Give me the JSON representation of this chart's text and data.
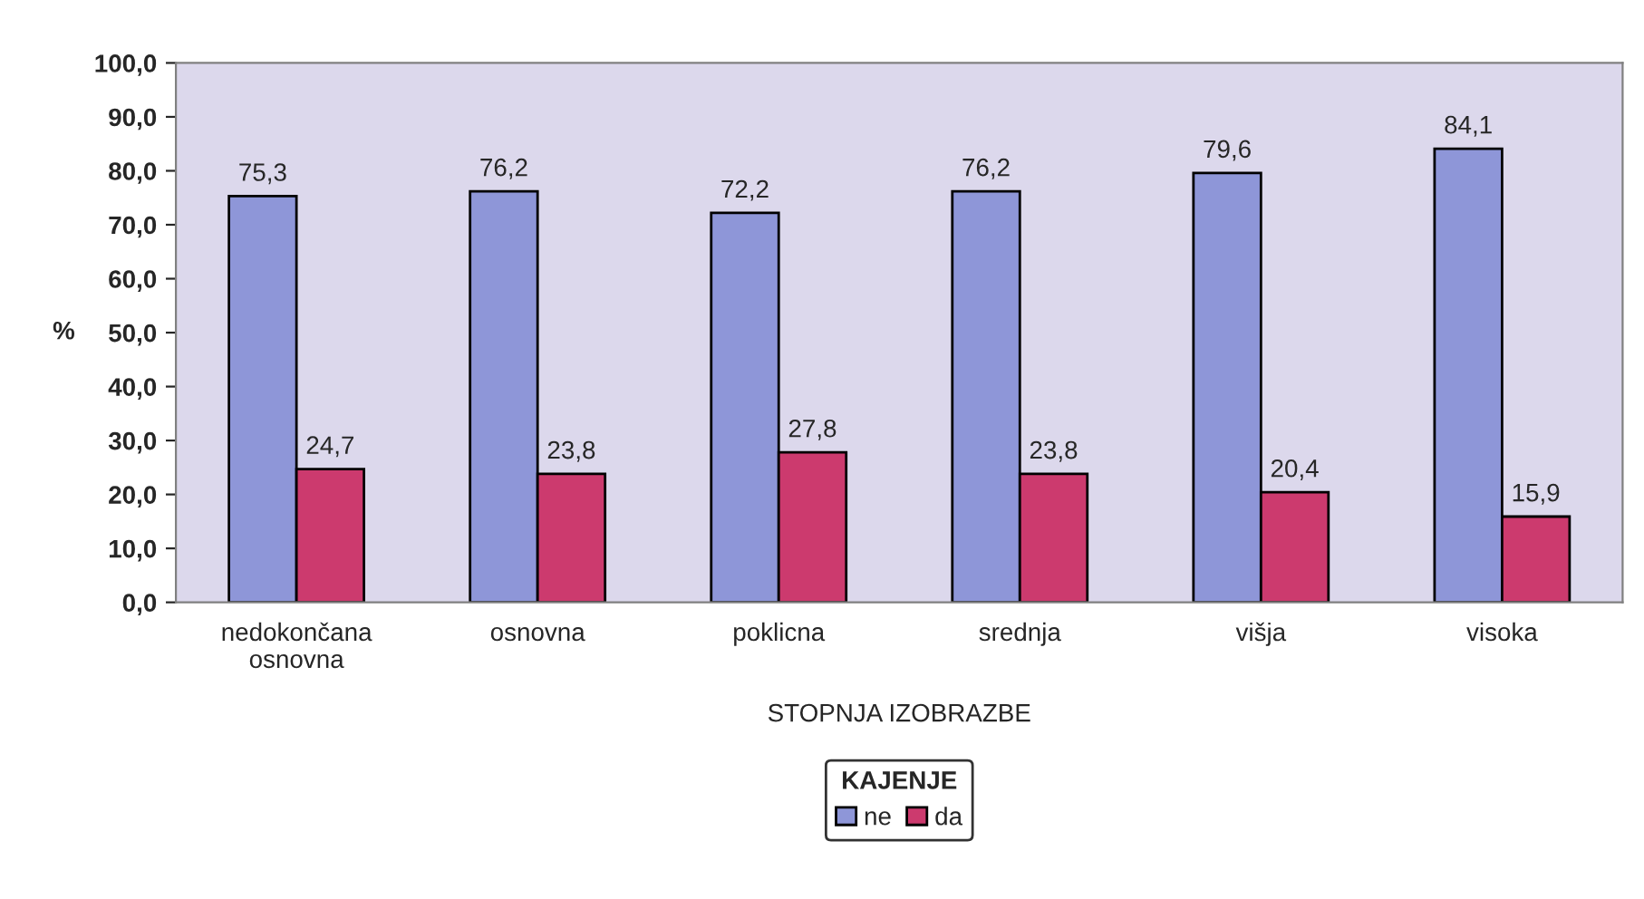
{
  "chart_data": {
    "type": "bar",
    "xlabel": "STOPNJA IZOBRAZBE",
    "ylabel": "%",
    "legend_title": "KAJENJE",
    "categories": [
      "nedokončana\nosnovna",
      "osnovna",
      "poklicna",
      "srednja",
      "višja",
      "visoka"
    ],
    "series": [
      {
        "name": "ne",
        "color": "#8e96d8",
        "values": [
          75.3,
          76.2,
          72.2,
          76.2,
          79.6,
          84.1
        ],
        "value_labels": [
          "75,3",
          "76,2",
          "72,2",
          "76,2",
          "79,6",
          "84,1"
        ]
      },
      {
        "name": "da",
        "color": "#cc3a6e",
        "values": [
          24.7,
          23.8,
          27.8,
          23.8,
          20.4,
          15.9
        ],
        "value_labels": [
          "24,7",
          "23,8",
          "27,8",
          "23,8",
          "20,4",
          "15,9"
        ]
      }
    ],
    "ylim": [
      0,
      100
    ],
    "yticks": [
      {
        "value": 0,
        "label": "0,0"
      },
      {
        "value": 10,
        "label": "10,0"
      },
      {
        "value": 20,
        "label": "20,0"
      },
      {
        "value": 30,
        "label": "30,0"
      },
      {
        "value": 40,
        "label": "40,0"
      },
      {
        "value": 50,
        "label": "50,0"
      },
      {
        "value": 60,
        "label": "60,0"
      },
      {
        "value": 70,
        "label": "70,0"
      },
      {
        "value": 80,
        "label": "80,0"
      },
      {
        "value": 90,
        "label": "90,0"
      },
      {
        "value": 100,
        "label": "100,0"
      }
    ],
    "grid": false,
    "legend": "bottom"
  }
}
